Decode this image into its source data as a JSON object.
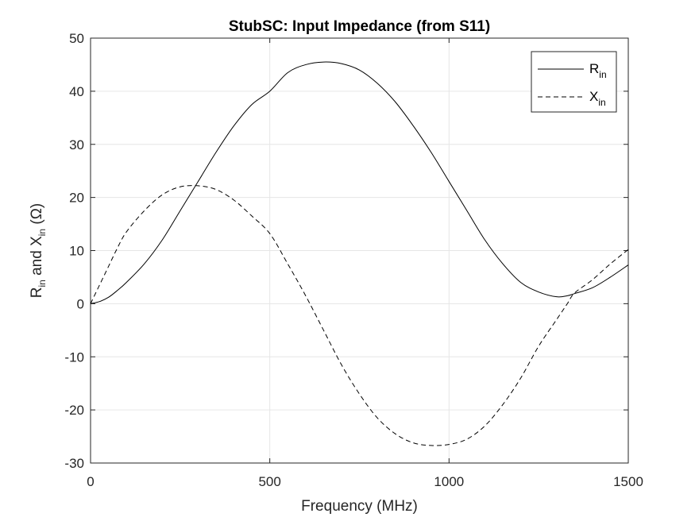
{
  "chart_data": {
    "type": "line",
    "title": "StubSC: Input Impedance (from S11)",
    "xlabel": "Frequency (MHz)",
    "ylabel": {
      "parts": [
        {
          "text": "R",
          "sub": false
        },
        {
          "text": "in",
          "sub": true
        },
        {
          "text": " and X",
          "sub": false
        },
        {
          "text": "in",
          "sub": true
        },
        {
          "text": " (Ω)",
          "sub": false
        }
      ]
    },
    "xlim": [
      0,
      1500
    ],
    "ylim": [
      -30,
      50
    ],
    "xticks": [
      0,
      500,
      1000,
      1500
    ],
    "yticks": [
      -30,
      -20,
      -10,
      0,
      10,
      20,
      30,
      40,
      50
    ],
    "grid": true,
    "legend_position": "top-right",
    "x": [
      0,
      25,
      50,
      75,
      100,
      150,
      200,
      250,
      300,
      350,
      400,
      450,
      500,
      550,
      600,
      650,
      700,
      750,
      800,
      850,
      900,
      950,
      1000,
      1050,
      1100,
      1150,
      1200,
      1250,
      1300,
      1330,
      1350,
      1400,
      1450,
      1500
    ],
    "series": [
      {
        "name": "R",
        "name_sub": "in",
        "style": "solid",
        "color": "#000000",
        "values": [
          0,
          0.4,
          1.2,
          2.5,
          4,
          7.5,
          12,
          17.5,
          23,
          28.5,
          33.5,
          37.5,
          40,
          43.5,
          45,
          45.5,
          45.2,
          44,
          41.5,
          38,
          33.5,
          28.5,
          23,
          17.5,
          12,
          7.5,
          4,
          2.2,
          1.3,
          1.5,
          1.9,
          3,
          5,
          7.3
        ]
      },
      {
        "name": "X",
        "name_sub": "in",
        "style": "dashed",
        "color": "#000000",
        "values": [
          0,
          3.5,
          7,
          10.5,
          13.5,
          17.5,
          20.5,
          22,
          22.2,
          21.5,
          19.5,
          16.5,
          13.2,
          7.5,
          1.5,
          -5,
          -11.5,
          -17,
          -21.5,
          -24.5,
          -26.2,
          -26.7,
          -26.5,
          -25.5,
          -23,
          -19,
          -14,
          -8,
          -3,
          0,
          2,
          4.5,
          7.5,
          10.2
        ]
      }
    ]
  },
  "colors": {
    "line": "#000000",
    "grid": "#e6e6e6",
    "axis": "#262626",
    "background": "#ffffff"
  }
}
